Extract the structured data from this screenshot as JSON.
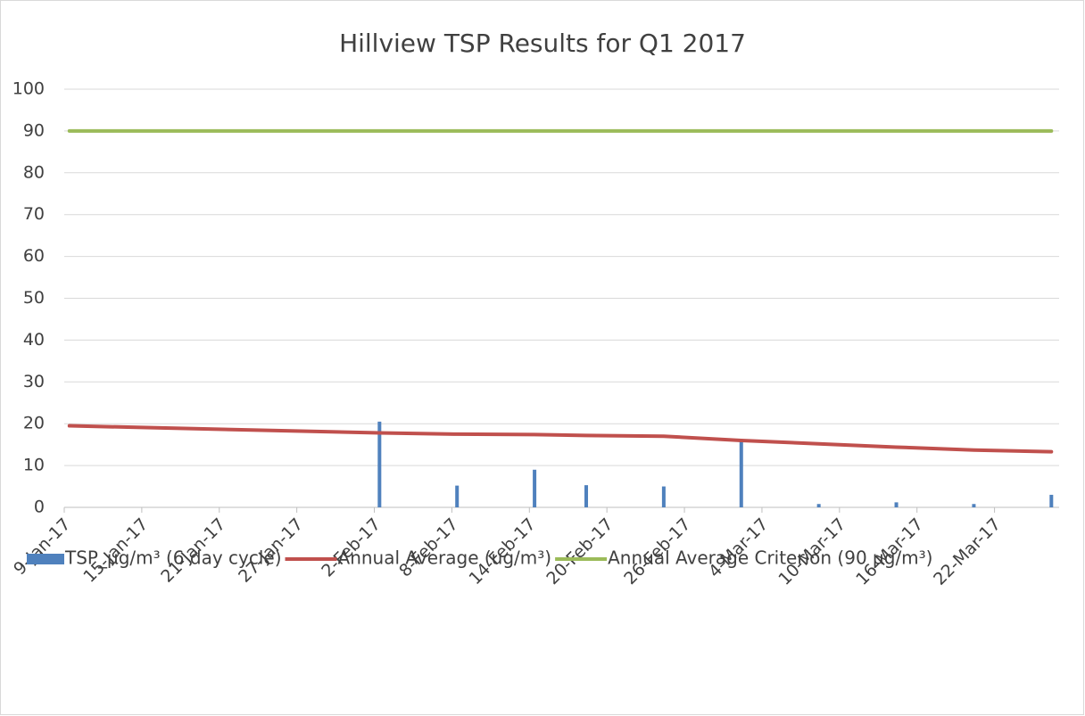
{
  "chart_data": {
    "type": "bar",
    "title": "Hillview TSP Results for Q1 2017",
    "x": [
      "2017-01-09",
      "2017-02-02",
      "2017-02-08",
      "2017-02-14",
      "2017-02-18",
      "2017-02-24",
      "2017-03-02",
      "2017-03-08",
      "2017-03-14",
      "2017-03-20",
      "2017-03-26"
    ],
    "series": [
      {
        "name": "TSP_µg/m³ (6 day cycle)",
        "type": "bar",
        "color": "#4f81bd",
        "values": [
          null,
          20.5,
          5.2,
          9,
          5.3,
          5,
          16,
          0.8,
          1.2,
          0.8,
          3
        ]
      },
      {
        "name": "Annual Average (ug/m³)",
        "type": "line",
        "color": "#c0504d",
        "values": [
          19.5,
          17.8,
          17.5,
          17.4,
          17.2,
          17.0,
          16.0,
          15.2,
          14.4,
          13.7,
          13.3
        ]
      },
      {
        "name": "Annual Average Criterion (90 µg/m³)",
        "type": "line",
        "color": "#9bbb59",
        "values": [
          90,
          90,
          90,
          90,
          90,
          90,
          90,
          90,
          90,
          90,
          90
        ]
      }
    ],
    "xlim": [
      "2017-01-09",
      "2017-03-27"
    ],
    "xticks": [
      {
        "value": "2017-01-09",
        "label": "9-Jan-17"
      },
      {
        "value": "2017-01-15",
        "label": "15-Jan-17"
      },
      {
        "value": "2017-01-21",
        "label": "21-Jan-17"
      },
      {
        "value": "2017-01-27",
        "label": "27-Jan-17"
      },
      {
        "value": "2017-02-02",
        "label": "2-Feb-17"
      },
      {
        "value": "2017-02-08",
        "label": "8-Feb-17"
      },
      {
        "value": "2017-02-14",
        "label": "14-Feb-17"
      },
      {
        "value": "2017-02-20",
        "label": "20-Feb-17"
      },
      {
        "value": "2017-02-26",
        "label": "26-Feb-17"
      },
      {
        "value": "2017-03-04",
        "label": "4-Mar-17"
      },
      {
        "value": "2017-03-10",
        "label": "10-Mar-17"
      },
      {
        "value": "2017-03-16",
        "label": "16-Mar-17"
      },
      {
        "value": "2017-03-22",
        "label": "22-Mar-17"
      }
    ],
    "ylim": [
      0,
      100
    ],
    "yticks": [
      0,
      10,
      20,
      30,
      40,
      50,
      60,
      70,
      80,
      90,
      100
    ],
    "grid": true,
    "legend": "bottom"
  }
}
